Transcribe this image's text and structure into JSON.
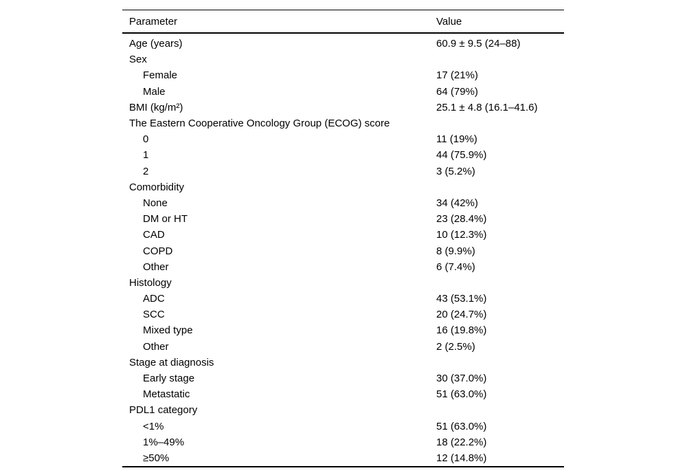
{
  "page": {
    "background_color": "#ffffff",
    "text_color": "#000000",
    "rule_color": "#000000"
  },
  "table": {
    "header": {
      "parameter": "Parameter",
      "value": "Value"
    },
    "rows": [
      {
        "parameter": "Age (years)",
        "value": "60.9 ± 9.5 (24–88)",
        "indent": false
      },
      {
        "parameter": "Sex",
        "value": "",
        "indent": false
      },
      {
        "parameter": "Female",
        "value": "17 (21%)",
        "indent": true
      },
      {
        "parameter": "Male",
        "value": "64 (79%)",
        "indent": true
      },
      {
        "parameter": "BMI (kg/m²)",
        "value": "25.1 ± 4.8 (16.1–41.6)",
        "indent": false
      },
      {
        "parameter": "The Eastern Cooperative Oncology Group (ECOG) score",
        "value": "",
        "indent": false
      },
      {
        "parameter": "0",
        "value": "11 (19%)",
        "indent": true
      },
      {
        "parameter": "1",
        "value": "44 (75.9%)",
        "indent": true
      },
      {
        "parameter": "2",
        "value": "3 (5.2%)",
        "indent": true
      },
      {
        "parameter": "Comorbidity",
        "value": "",
        "indent": false
      },
      {
        "parameter": "None",
        "value": "34 (42%)",
        "indent": true
      },
      {
        "parameter": "DM or HT",
        "value": "23 (28.4%)",
        "indent": true
      },
      {
        "parameter": "CAD",
        "value": "10 (12.3%)",
        "indent": true
      },
      {
        "parameter": "COPD",
        "value": "8 (9.9%)",
        "indent": true
      },
      {
        "parameter": "Other",
        "value": "6 (7.4%)",
        "indent": true
      },
      {
        "parameter": "Histology",
        "value": "",
        "indent": false
      },
      {
        "parameter": "ADC",
        "value": "43 (53.1%)",
        "indent": true
      },
      {
        "parameter": "SCC",
        "value": "20 (24.7%)",
        "indent": true
      },
      {
        "parameter": "Mixed type",
        "value": "16 (19.8%)",
        "indent": true
      },
      {
        "parameter": "Other",
        "value": "2 (2.5%)",
        "indent": true
      },
      {
        "parameter": "Stage at diagnosis",
        "value": "",
        "indent": false
      },
      {
        "parameter": "Early stage",
        "value": "30 (37.0%)",
        "indent": true
      },
      {
        "parameter": "Metastatic",
        "value": "51 (63.0%)",
        "indent": true
      },
      {
        "parameter": "PDL1 category",
        "value": "",
        "indent": false
      },
      {
        "parameter": "<1%",
        "value": "51 (63.0%)",
        "indent": true
      },
      {
        "parameter": "1%–49%",
        "value": "18 (22.2%)",
        "indent": true
      },
      {
        "parameter": "≥50%",
        "value": "12 (14.8%)",
        "indent": true
      }
    ]
  }
}
